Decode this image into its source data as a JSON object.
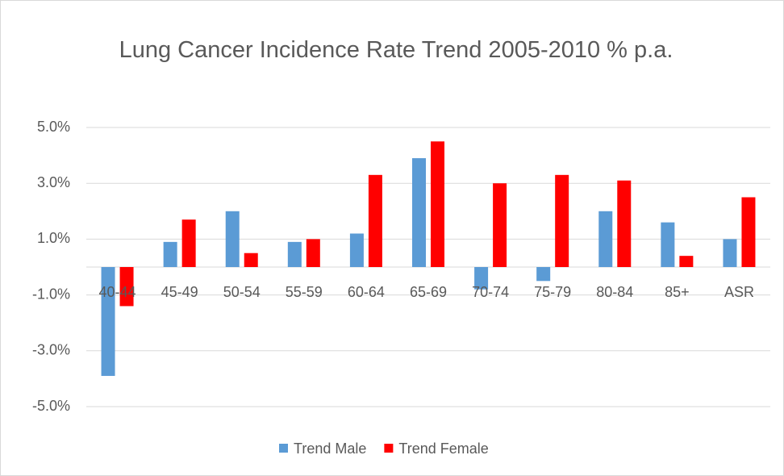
{
  "chart_data": {
    "type": "bar",
    "title": "Lung Cancer Incidence Rate Trend 2005-2010 % p.a.",
    "categories": [
      "40-44",
      "45-49",
      "50-54",
      "55-59",
      "60-64",
      "65-69",
      "70-74",
      "75-79",
      "80-84",
      "85+",
      "ASR"
    ],
    "series": [
      {
        "name": "Trend Male",
        "color": "#5b9bd5",
        "values": [
          -3.9,
          0.9,
          2.0,
          0.9,
          1.2,
          3.9,
          -0.8,
          -0.5,
          2.0,
          1.6,
          1.0
        ]
      },
      {
        "name": "Trend Female",
        "color": "#ff0000",
        "values": [
          -1.4,
          1.7,
          0.5,
          1.0,
          3.3,
          4.5,
          3.0,
          3.3,
          3.1,
          0.4,
          2.5
        ]
      }
    ],
    "ylim": [
      -5,
      5
    ],
    "yticks": [
      {
        "value": 5,
        "label": "5.0%"
      },
      {
        "value": 3,
        "label": "3.0%"
      },
      {
        "value": 1,
        "label": "1.0%"
      },
      {
        "value": -1,
        "label": "-1.0%"
      },
      {
        "value": -3,
        "label": "-3.0%"
      },
      {
        "value": -5,
        "label": "-5.0%"
      }
    ],
    "grid": true,
    "legend": "bottom"
  }
}
